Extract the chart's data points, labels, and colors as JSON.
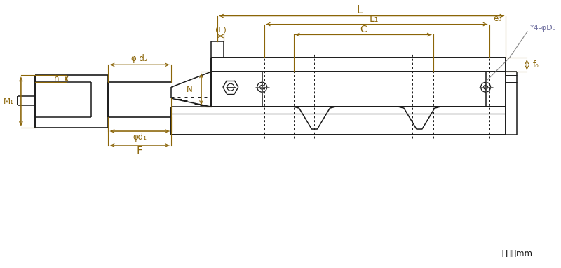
{
  "bg_color": "#ffffff",
  "line_color": "#1a1a1a",
  "dim_color": "#8B6508",
  "dim_color2": "#7070A0",
  "fig_width": 8.0,
  "fig_height": 3.82,
  "unit_text": "单位：mm",
  "labels": {
    "E": "(E)",
    "L": "L",
    "L1": "L₁",
    "C": "C",
    "e0": "e₀",
    "D0": "*4-φD₀",
    "f0": "f₀",
    "phi_d2": "φ d₂",
    "N": "N",
    "h": "h",
    "M1": "M₁",
    "phi_d1": "φd₁",
    "F": "F"
  }
}
